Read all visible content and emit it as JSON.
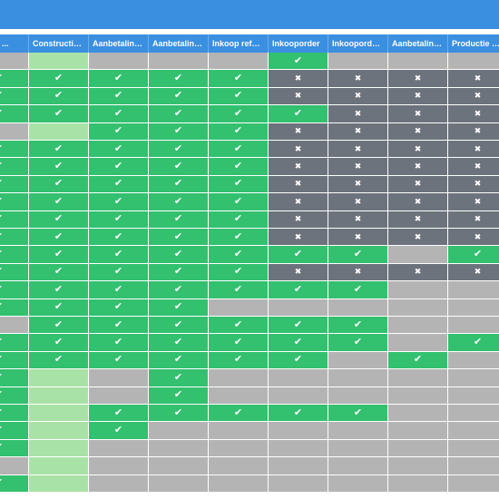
{
  "colors": {
    "topbar": "#3b8fe0",
    "header_bg": "#3b8fe0",
    "header_text": "#ffffff",
    "green": "#33c06f",
    "lightgreen": "#a9e2a6",
    "gray": "#b4b4b4",
    "dark": "#6c737c"
  },
  "icons": {
    "check": "✔",
    "cross": "✖",
    "check_name": "check-icon",
    "cross_name": "cross-icon"
  },
  "table": {
    "columns": [
      "Prijzen ...",
      "Constructietek...",
      "Aanbetalingsf...",
      "Aanbetaling b...",
      "Inkoop referen...",
      "Inkooporder",
      "Inkooporder v...",
      "Aanbetaling b...",
      "Productie datu..."
    ],
    "rows": [
      [
        "g",
        "L",
        "g",
        "g",
        "g",
        "Gc",
        "g",
        "g",
        "g"
      ],
      [
        "Gc",
        "Gc",
        "Gc",
        "Gc",
        "Gc",
        "Dx",
        "Dx",
        "Dx",
        "Dx"
      ],
      [
        "Gc",
        "Gc",
        "Gc",
        "Gc",
        "Gc",
        "Dx",
        "Dx",
        "Dx",
        "Dx"
      ],
      [
        "Gc",
        "Gc",
        "Gc",
        "Gc",
        "Gc",
        "Gc",
        "Dx",
        "Dx",
        "Dx"
      ],
      [
        "g",
        "L",
        "Gc",
        "Gc",
        "Gc",
        "Dx",
        "Dx",
        "Dx",
        "Dx"
      ],
      [
        "Gc",
        "Gc",
        "Gc",
        "Gc",
        "Gc",
        "Dx",
        "Dx",
        "Dx",
        "Dx"
      ],
      [
        "Gc",
        "Gc",
        "Gc",
        "Gc",
        "Gc",
        "Dx",
        "Dx",
        "Dx",
        "Dx"
      ],
      [
        "Gc",
        "Gc",
        "Gc",
        "Gc",
        "Gc",
        "Dx",
        "Dx",
        "Dx",
        "Dx"
      ],
      [
        "Gc",
        "Gc",
        "Gc",
        "Gc",
        "Gc",
        "Dx",
        "Dx",
        "Dx",
        "Dx"
      ],
      [
        "Gc",
        "Gc",
        "Gc",
        "Gc",
        "Gc",
        "Dx",
        "Dx",
        "Dx",
        "Dx"
      ],
      [
        "Gc",
        "Gc",
        "Gc",
        "Gc",
        "Gc",
        "Dx",
        "Dx",
        "Dx",
        "Dx"
      ],
      [
        "Gc",
        "Gc",
        "Gc",
        "Gc",
        "Gc",
        "Gc",
        "Gc",
        "g",
        "Gc"
      ],
      [
        "Gc",
        "Gc",
        "Gc",
        "Gc",
        "Gc",
        "Dx",
        "Dx",
        "Dx",
        "Dx"
      ],
      [
        "Gc",
        "Gc",
        "Gc",
        "Gc",
        "Gc",
        "Gc",
        "Gc",
        "g",
        "g"
      ],
      [
        "Gc",
        "Gc",
        "Gc",
        "Gc",
        "g",
        "g",
        "g",
        "g",
        "g"
      ],
      [
        "g",
        "Gc",
        "Gc",
        "Gc",
        "Gc",
        "Gc",
        "Gc",
        "g",
        "g"
      ],
      [
        "Gc",
        "Gc",
        "Gc",
        "Gc",
        "Gc",
        "Gc",
        "Gc",
        "g",
        "Gc"
      ],
      [
        "Gc",
        "Gc",
        "Gc",
        "Gc",
        "Gc",
        "Gc",
        "g",
        "Gc",
        "g"
      ],
      [
        "Gc",
        "L",
        "g",
        "Gc",
        "g",
        "g",
        "g",
        "g",
        "g"
      ],
      [
        "Gc",
        "L",
        "g",
        "Gc",
        "g",
        "g",
        "g",
        "g",
        "g"
      ],
      [
        "Gc",
        "L",
        "Gc",
        "Gc",
        "Gc",
        "Gc",
        "Gc",
        "g",
        "g"
      ],
      [
        "Gc",
        "L",
        "Gc",
        "g",
        "g",
        "g",
        "g",
        "g",
        "g"
      ],
      [
        "Gc",
        "L",
        "g",
        "g",
        "g",
        "g",
        "g",
        "g",
        "g"
      ],
      [
        "g",
        "L",
        "g",
        "g",
        "g",
        "g",
        "g",
        "g",
        "g"
      ],
      [
        "Gc",
        "L",
        "g",
        "g",
        "g",
        "g",
        "g",
        "g",
        "g"
      ]
    ]
  }
}
